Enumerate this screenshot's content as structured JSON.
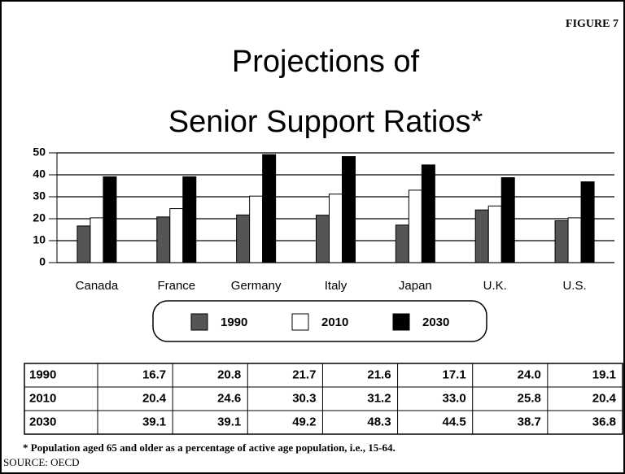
{
  "chart_data": {
    "type": "bar",
    "figure_label": "FIGURE 7",
    "title": [
      "Projections of",
      "Senior Support Ratios*"
    ],
    "categories": [
      "Canada",
      "France",
      "Germany",
      "Italy",
      "Japan",
      "U.K.",
      "U.S."
    ],
    "series": [
      {
        "name": "1990",
        "color": "#555555",
        "values": [
          16.7,
          20.8,
          21.7,
          21.6,
          17.1,
          24.0,
          19.1
        ],
        "value_labels": [
          "16.7",
          "20.8",
          "21.7",
          "21.6",
          "17.1",
          "24.0",
          "19.1"
        ]
      },
      {
        "name": "2010",
        "color": "#ffffff",
        "values": [
          20.4,
          24.6,
          30.3,
          31.2,
          33.0,
          25.8,
          20.4
        ],
        "value_labels": [
          "20.4",
          "24.6",
          "30.3",
          "31.2",
          "33.0",
          "25.8",
          "20.4"
        ]
      },
      {
        "name": "2030",
        "color": "#000000",
        "values": [
          39.1,
          39.1,
          49.2,
          48.3,
          44.5,
          38.7,
          36.8
        ],
        "value_labels": [
          "39.1",
          "39.1",
          "49.2",
          "48.3",
          "44.5",
          "38.7",
          "36.8"
        ]
      }
    ],
    "ylim": [
      0,
      50
    ],
    "yticks": [
      0,
      10,
      20,
      30,
      40,
      50
    ],
    "grid": true,
    "footnote": "* Population aged 65 and older as a percentage of active age population, i.e., 15-64.",
    "source": "SOURCE: OECD"
  }
}
